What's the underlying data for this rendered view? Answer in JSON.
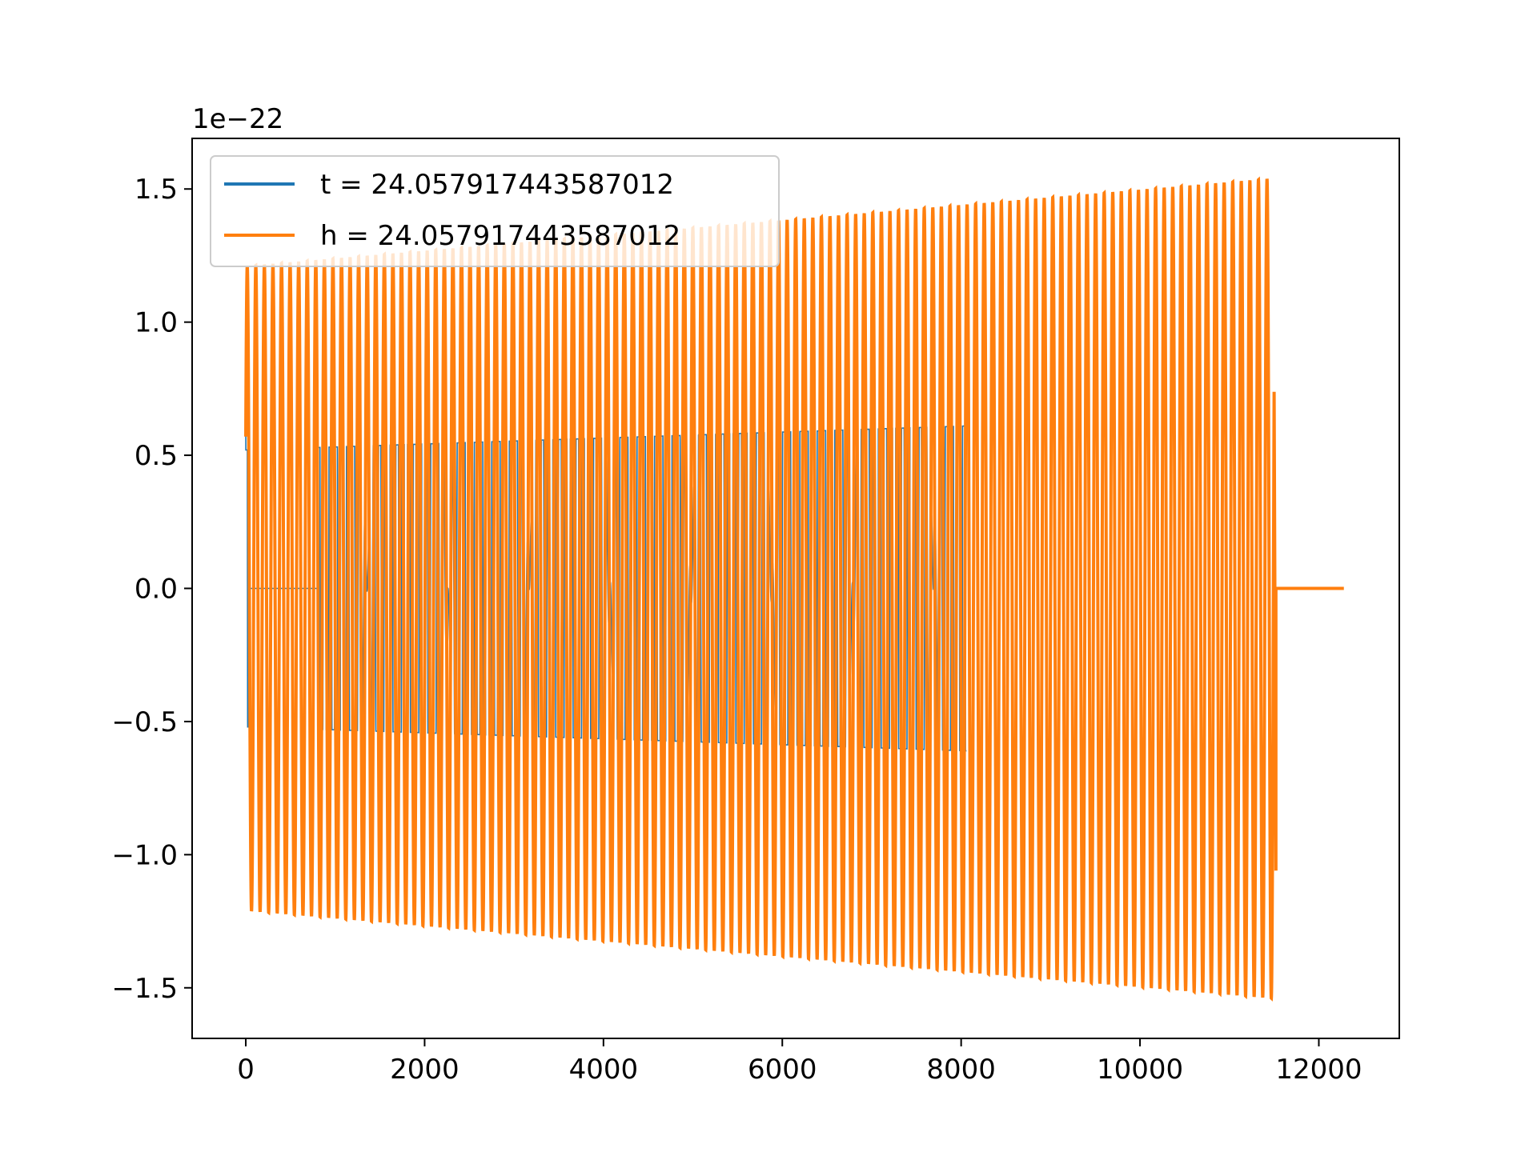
{
  "chart_data": {
    "type": "line",
    "title": "",
    "xlabel": "",
    "ylabel": "",
    "y_offset_label": "1e−22",
    "xlim": [
      -600,
      12900
    ],
    "ylim": [
      -1.69,
      1.69
    ],
    "x_ticks": [
      0,
      2000,
      4000,
      6000,
      8000,
      10000,
      12000
    ],
    "x_tick_labels": [
      "0",
      "2000",
      "4000",
      "6000",
      "8000",
      "10000",
      "12000"
    ],
    "y_ticks": [
      -1.5,
      -1.0,
      -0.5,
      0.0,
      0.5,
      1.0,
      1.5
    ],
    "y_tick_labels": [
      "−1.5",
      "−1.0",
      "−0.5",
      "0.0",
      "0.5",
      "1.0",
      "1.5"
    ],
    "grid": false,
    "legend_position": "upper-left",
    "series": [
      {
        "name": "t = 24.057917443587012",
        "color": "#1f77b4",
        "signal": {
          "x_start": 0,
          "x_end": 8060,
          "start_value": 0.58,
          "amplitude_start": 0.52,
          "amplitude_end": 0.61,
          "beat_period": 905,
          "carrier_cycles": 124,
          "flat_segment": [
            0,
            800
          ]
        }
      },
      {
        "name": "h = 24.057917443587012",
        "color": "#ff7f0e",
        "signal": {
          "x_start": 0,
          "x_end": 11500,
          "start_value": 0.57,
          "amplitude_start": 1.21,
          "amplitude_end": 1.54,
          "carrier_cycles": 120,
          "end_value": -1.06,
          "tail_x_end": 12280,
          "tail_value": 0.0
        }
      }
    ]
  }
}
